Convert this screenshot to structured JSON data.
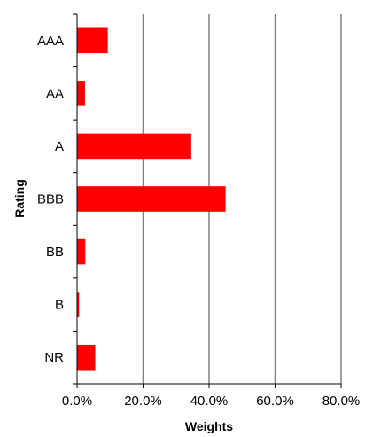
{
  "chart_data": {
    "type": "bar",
    "orientation": "horizontal",
    "categories": [
      "AAA",
      "AA",
      "A",
      "BBB",
      "BB",
      "B",
      "NR"
    ],
    "values": [
      9.3,
      2.4,
      34.6,
      45.0,
      2.5,
      0.6,
      5.5
    ],
    "value_unit": "%",
    "xlabel": "Weights",
    "ylabel": "Rating",
    "xlim": [
      0,
      80
    ],
    "xticks": [
      "0.0%",
      "20.0%",
      "40.0%",
      "60.0%",
      "80.0%"
    ],
    "grid": "vertical",
    "legend": "none",
    "bar_color": "#ff0000",
    "grid_color": "#808080"
  }
}
